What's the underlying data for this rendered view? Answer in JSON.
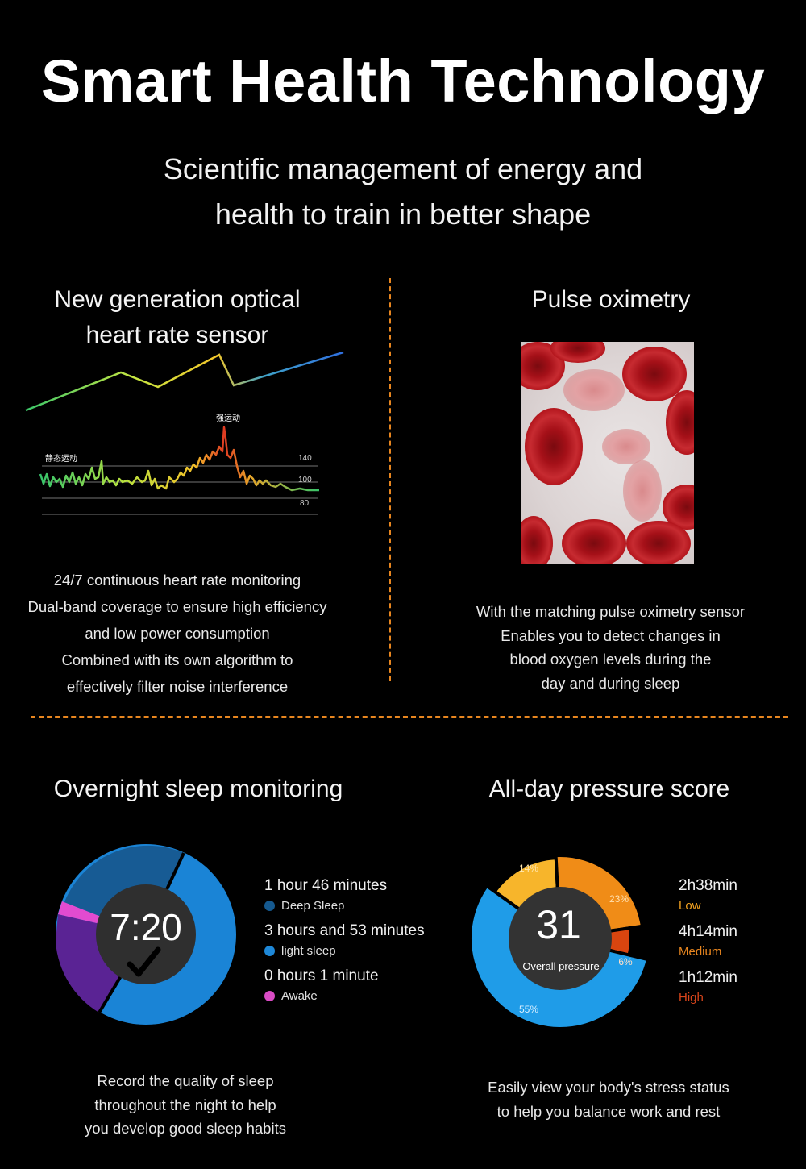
{
  "header": {
    "title": "Smart Health Technology",
    "subtitle_line1": "Scientific management of energy and",
    "subtitle_line2": "health to train in better shape"
  },
  "heart": {
    "title_line1": "New generation optical",
    "title_line2": "heart rate sensor",
    "ecg_label_strong": "强运动",
    "ecg_label_static": "静态运动",
    "ecg_ticks": [
      "140",
      "100",
      "80"
    ],
    "lines": [
      "24/7 continuous heart rate monitoring",
      "Dual-band coverage to ensure high efficiency",
      "and low power consumption",
      "Combined with its own algorithm to",
      "effectively filter noise interference"
    ]
  },
  "pulse": {
    "title": "Pulse oximetry",
    "lines": [
      "With the matching pulse oximetry sensor",
      "Enables you to detect changes in",
      "blood oxygen levels during the",
      "day and during sleep"
    ]
  },
  "sleep": {
    "title": "Overnight sleep monitoring",
    "center_time": "7:20",
    "legend": [
      {
        "time": "1 hour 46 minutes",
        "label": "Deep Sleep",
        "color": "#15598f"
      },
      {
        "time": "3 hours and 53 minutes",
        "label": "light sleep",
        "color": "#1e88d8"
      },
      {
        "time": "0 hours 1 minute",
        "label": "Awake",
        "color": "#d94bc4"
      }
    ],
    "lines": [
      "Record the quality of sleep",
      "throughout the night to help",
      "you develop good sleep habits"
    ],
    "ring_colors": {
      "deep": "#15598f",
      "light": "#1e88d8",
      "awake": "#e24bd0",
      "purple": "#5b2398"
    }
  },
  "pressure": {
    "title": "All-day pressure score",
    "score": "31",
    "score_label": "Overall pressure",
    "slices": [
      {
        "pct_label": "14%",
        "value": 14,
        "color": "#f7b52b"
      },
      {
        "pct_label": "23%",
        "value": 23,
        "color": "#f08c17"
      },
      {
        "pct_label": "6%",
        "value": 6,
        "color": "#d9450f"
      },
      {
        "pct_label": "55%",
        "value": 55,
        "color": "#1f9ce8"
      }
    ],
    "legend": [
      {
        "time": "2h38min",
        "level": "Low",
        "color": "#f0a020"
      },
      {
        "time": "4h14min",
        "level": "Medium",
        "color": "#e8861f"
      },
      {
        "time": "1h12min",
        "level": "High",
        "color": "#d9451b"
      }
    ],
    "lines": [
      "Easily view your body's stress status",
      "to help you balance work and rest"
    ]
  }
}
